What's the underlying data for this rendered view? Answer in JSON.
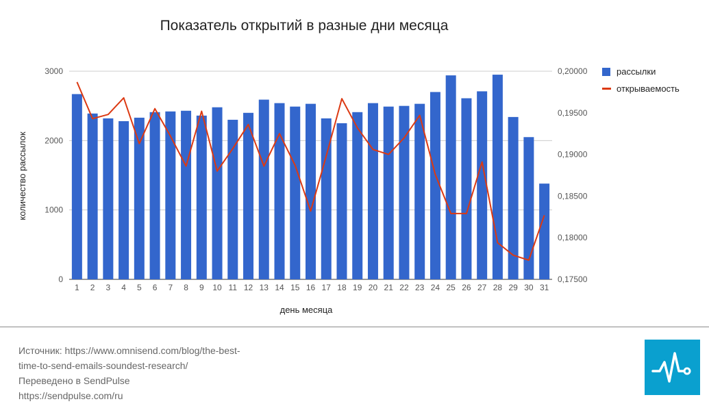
{
  "chart_data": {
    "type": "bar",
    "title": "Показатель открытий в разные дни месяца",
    "xlabel": "день месяца",
    "ylabel": "количество рассылок",
    "y2label": "",
    "categories": [
      "1",
      "2",
      "3",
      "4",
      "5",
      "6",
      "7",
      "8",
      "9",
      "10",
      "11",
      "12",
      "13",
      "14",
      "15",
      "16",
      "17",
      "18",
      "19",
      "20",
      "21",
      "22",
      "23",
      "24",
      "25",
      "26",
      "27",
      "28",
      "29",
      "30",
      "31"
    ],
    "ylim": [
      0,
      3000
    ],
    "yticks": [
      "0",
      "1000",
      "2000",
      "3000"
    ],
    "y2lim": [
      0.175,
      0.2
    ],
    "y2ticks": [
      "0,17500",
      "0,18000",
      "0,18500",
      "0,19000",
      "0,19500",
      "0,20000"
    ],
    "grid": true,
    "legend_position": "right",
    "series": [
      {
        "name": "рассылки",
        "type": "bar",
        "axis": "left",
        "color": "#3366cc",
        "values": [
          2670,
          2390,
          2320,
          2280,
          2330,
          2410,
          2420,
          2430,
          2360,
          2480,
          2300,
          2400,
          2590,
          2540,
          2490,
          2530,
          2320,
          2250,
          2410,
          2540,
          2490,
          2500,
          2530,
          2700,
          2940,
          2610,
          2710,
          2950,
          2340,
          2050,
          1380
        ]
      },
      {
        "name": "открываемость",
        "type": "line",
        "axis": "right",
        "color": "#dc3912",
        "values": [
          0.1987,
          0.1943,
          0.1948,
          0.1968,
          0.1913,
          0.1955,
          0.1922,
          0.1886,
          0.1952,
          0.188,
          0.1907,
          0.1936,
          0.1886,
          0.1925,
          0.1887,
          0.1832,
          0.1898,
          0.1967,
          0.1932,
          0.1906,
          0.19,
          0.192,
          0.1947,
          0.1876,
          0.1829,
          0.1829,
          0.1891,
          0.1794,
          0.1779,
          0.1773,
          0.1827
        ]
      }
    ]
  },
  "footer": {
    "source_lines": [
      "Источник: https://www.omnisend.com/blog/the-best-",
      "time-to-send-emails-soundest-research/",
      "Переведено в SendPulse",
      "https://sendpulse.com/ru"
    ],
    "logo_icon": "sendpulse-logo-icon",
    "logo_color": "#0aa0cf"
  }
}
